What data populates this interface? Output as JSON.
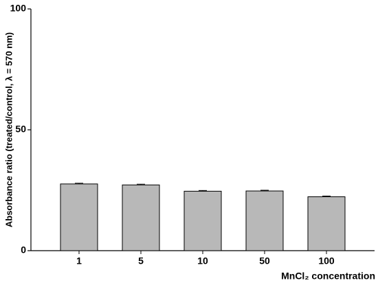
{
  "chart_data": {
    "type": "bar",
    "y_label": "Absorbance ratio (treated/control, λ = 570 nm)",
    "x_label": "MnCl₂ concentration",
    "categories": [
      "1",
      "5",
      "10",
      "50",
      "100"
    ],
    "values": [
      27.6,
      27.2,
      24.6,
      24.7,
      22.3
    ],
    "errors": [
      0.3,
      0.3,
      0.3,
      0.3,
      0.3
    ],
    "color": "#b8b8b8",
    "ylim": [
      0,
      100
    ],
    "yticks": [
      0,
      50,
      100
    ],
    "grid": false
  }
}
